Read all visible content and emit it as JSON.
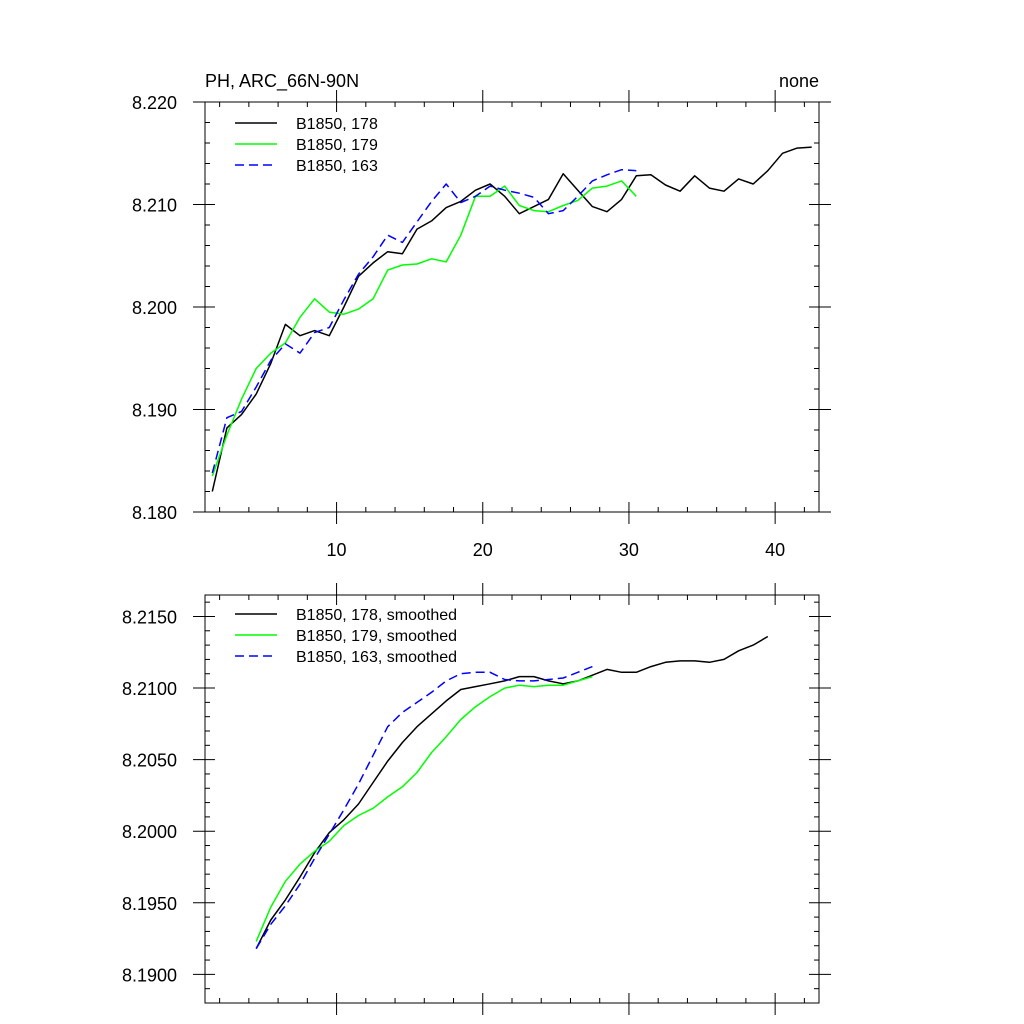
{
  "chart_data": [
    {
      "type": "line",
      "title_left": "PH, ARC_66N-90N",
      "title_right": "none",
      "xlabel": "",
      "ylabel": "",
      "xlim": [
        1,
        43
      ],
      "ylim": [
        8.18,
        8.22
      ],
      "xticks": [
        10,
        20,
        30,
        40
      ],
      "yticks": [
        "8.180",
        "8.190",
        "8.200",
        "8.210",
        "8.220"
      ],
      "grid": false,
      "legend": "top-left",
      "series": [
        {
          "name": "B1850, 178",
          "color": "#000000",
          "dash": "solid",
          "x": [
            1.5,
            2.5,
            3.5,
            4.5,
            5.5,
            6.5,
            7.5,
            8.5,
            9.5,
            10.5,
            11.5,
            12.5,
            13.5,
            14.5,
            15.5,
            16.5,
            17.5,
            18.5,
            19.5,
            20.5,
            21.5,
            22.5,
            23.5,
            24.5,
            25.5,
            26.5,
            27.5,
            28.5,
            29.5,
            30.5,
            31.5,
            32.5,
            33.5,
            34.5,
            35.5,
            36.5,
            37.5,
            38.5,
            39.5,
            40.5,
            41.5,
            42.5
          ],
          "y": [
            8.182,
            8.1882,
            8.1895,
            8.1915,
            8.1945,
            8.1983,
            8.1972,
            8.1977,
            8.1972,
            8.2,
            8.203,
            8.2043,
            8.2054,
            8.2052,
            8.2076,
            8.2084,
            8.2097,
            8.2103,
            8.2114,
            8.212,
            8.2108,
            8.2091,
            8.2098,
            8.2105,
            8.213,
            8.2114,
            8.2098,
            8.2093,
            8.2105,
            8.2128,
            8.2129,
            8.2119,
            8.2113,
            8.2128,
            8.2116,
            8.2113,
            8.2125,
            8.212,
            8.2133,
            8.215,
            8.2155,
            8.2156
          ]
        },
        {
          "name": "B1850, 179",
          "color": "#00ff00",
          "dash": "solid",
          "x": [
            1.5,
            2.5,
            3.5,
            4.5,
            5.5,
            6.5,
            7.5,
            8.5,
            9.5,
            10.5,
            11.5,
            12.5,
            13.5,
            14.5,
            15.5,
            16.5,
            17.5,
            18.5,
            19.5,
            20.5,
            21.5,
            22.5,
            23.5,
            24.5,
            25.5,
            26.5,
            27.5,
            28.5,
            29.5,
            30.5
          ],
          "y": [
            8.1835,
            8.1875,
            8.191,
            8.194,
            8.1955,
            8.1965,
            8.199,
            8.2008,
            8.1995,
            8.1993,
            8.1998,
            8.2008,
            8.2036,
            8.2041,
            8.2042,
            8.2047,
            8.2044,
            8.207,
            8.2108,
            8.2108,
            8.2118,
            8.2099,
            8.2094,
            8.2093,
            8.2099,
            8.2104,
            8.2116,
            8.2118,
            8.2123,
            8.2108
          ]
        },
        {
          "name": "B1850, 163",
          "color": "#0000ff",
          "dash": "dashed",
          "x": [
            1.5,
            2.5,
            3.5,
            4.5,
            5.5,
            6.5,
            7.5,
            8.5,
            9.5,
            10.5,
            11.5,
            12.5,
            13.5,
            14.5,
            15.5,
            16.5,
            17.5,
            18.5,
            19.5,
            20.5,
            21.5,
            22.5,
            23.5,
            24.5,
            25.5,
            26.5,
            27.5,
            28.5,
            29.5,
            30.5
          ],
          "y": [
            8.1838,
            8.1892,
            8.1898,
            8.1922,
            8.1948,
            8.1964,
            8.1955,
            8.1975,
            8.198,
            8.2007,
            8.2032,
            8.2049,
            8.207,
            8.2063,
            8.2083,
            8.2103,
            8.212,
            8.2102,
            8.2108,
            8.2118,
            8.2114,
            8.2111,
            8.2107,
            8.2091,
            8.2094,
            8.2108,
            8.2123,
            8.2129,
            8.2134,
            8.2133
          ]
        }
      ]
    },
    {
      "type": "line",
      "xlabel": "",
      "ylabel": "",
      "xlim": [
        1,
        43
      ],
      "ylim": [
        8.188,
        8.2165
      ],
      "xticks": [
        10,
        20,
        30,
        40
      ],
      "yticks": [
        "8.1900",
        "8.1950",
        "8.2000",
        "8.2050",
        "8.2100",
        "8.2150"
      ],
      "grid": false,
      "legend": "top-left",
      "series": [
        {
          "name": "B1850, 178, smoothed",
          "color": "#000000",
          "dash": "solid",
          "x": [
            4.5,
            5.5,
            6.5,
            7.5,
            8.5,
            9.5,
            10.5,
            11.5,
            12.5,
            13.5,
            14.5,
            15.5,
            16.5,
            17.5,
            18.5,
            19.5,
            20.5,
            21.5,
            22.5,
            23.5,
            24.5,
            25.5,
            26.5,
            27.5,
            28.5,
            29.5,
            30.5,
            31.5,
            32.5,
            33.5,
            34.5,
            35.5,
            36.5,
            37.5,
            38.5,
            39.5
          ],
          "y": [
            8.1918,
            8.1938,
            8.1952,
            8.1968,
            8.1985,
            8.1999,
            8.2008,
            8.2019,
            8.2034,
            8.2049,
            8.2062,
            8.2073,
            8.2082,
            8.2091,
            8.2099,
            8.2101,
            8.2103,
            8.2105,
            8.2108,
            8.2108,
            8.2105,
            8.2103,
            8.2105,
            8.2109,
            8.2113,
            8.2111,
            8.2111,
            8.2115,
            8.2118,
            8.2119,
            8.2119,
            8.2118,
            8.212,
            8.2126,
            8.213,
            8.2136
          ]
        },
        {
          "name": "B1850, 179, smoothed",
          "color": "#00ff00",
          "dash": "solid",
          "x": [
            4.5,
            5.5,
            6.5,
            7.5,
            8.5,
            9.5,
            10.5,
            11.5,
            12.5,
            13.5,
            14.5,
            15.5,
            16.5,
            17.5,
            18.5,
            19.5,
            20.5,
            21.5,
            22.5,
            23.5,
            24.5,
            25.5,
            26.5,
            27.5
          ],
          "y": [
            8.1923,
            8.1947,
            8.1965,
            8.1977,
            8.1986,
            8.1993,
            8.2004,
            8.2011,
            8.2016,
            8.2024,
            8.2031,
            8.2041,
            8.2055,
            8.2066,
            8.2078,
            8.2087,
            8.2094,
            8.21,
            8.2102,
            8.2101,
            8.2102,
            8.2102,
            8.2105,
            8.2108
          ]
        },
        {
          "name": "B1850, 163, smoothed",
          "color": "#0000ff",
          "dash": "dashed",
          "x": [
            4.5,
            5.5,
            6.5,
            7.5,
            8.5,
            9.5,
            10.5,
            11.5,
            12.5,
            13.5,
            14.5,
            15.5,
            16.5,
            17.5,
            18.5,
            19.5,
            20.5,
            21.5,
            22.5,
            23.5,
            24.5,
            25.5,
            26.5,
            27.5
          ],
          "y": [
            8.1918,
            8.1935,
            8.1948,
            8.1963,
            8.1981,
            8.1998,
            8.2015,
            8.2033,
            8.2053,
            8.2073,
            8.2083,
            8.209,
            8.2097,
            8.2105,
            8.211,
            8.2111,
            8.2111,
            8.2106,
            8.2105,
            8.2105,
            8.2106,
            8.2107,
            8.2111,
            8.2115
          ]
        }
      ]
    }
  ]
}
